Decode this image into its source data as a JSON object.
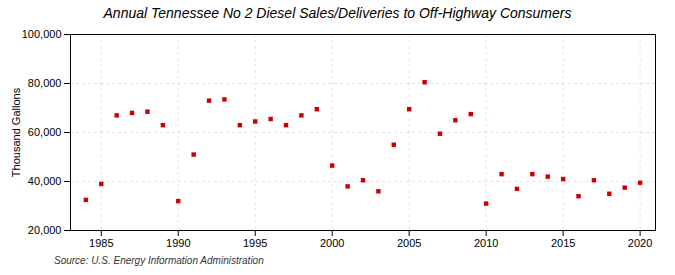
{
  "chart_data": {
    "type": "scatter",
    "title": "Annual Tennessee No 2 Diesel Sales/Deliveries to Off-Highway Consumers",
    "ylabel": "Thousand Gallons",
    "annotation": "Source: U.S. Energy Information Administration",
    "x": [
      1984,
      1985,
      1986,
      1987,
      1988,
      1989,
      1990,
      1991,
      1992,
      1993,
      1994,
      1995,
      1996,
      1997,
      1998,
      1999,
      2000,
      2001,
      2002,
      2003,
      2004,
      2005,
      2006,
      2007,
      2008,
      2009,
      2010,
      2011,
      2012,
      2013,
      2014,
      2015,
      2016,
      2017,
      2018,
      2019,
      2020
    ],
    "values": [
      32500,
      39000,
      67000,
      68000,
      68500,
      63000,
      32000,
      51000,
      73000,
      73500,
      63000,
      64500,
      65500,
      63000,
      67000,
      69500,
      46500,
      38000,
      40500,
      36000,
      55000,
      69500,
      80500,
      59500,
      65000,
      67500,
      31000,
      43000,
      37000,
      43000,
      42000,
      41000,
      34000,
      40500,
      35000,
      37500,
      39500
    ],
    "color": "#cc0000",
    "marker": "square",
    "xlim": [
      1983,
      2021
    ],
    "ylim": [
      20000,
      100000
    ],
    "xticks": [
      1985,
      1990,
      1995,
      2000,
      2005,
      2010,
      2015,
      2020
    ],
    "yticks": [
      {
        "value": 20000,
        "label": "20,000"
      },
      {
        "value": 40000,
        "label": "40,000"
      },
      {
        "value": 60000,
        "label": "60,000"
      },
      {
        "value": 80000,
        "label": "80,000"
      },
      {
        "value": 100000,
        "label": "100,000"
      }
    ],
    "grid": true
  }
}
